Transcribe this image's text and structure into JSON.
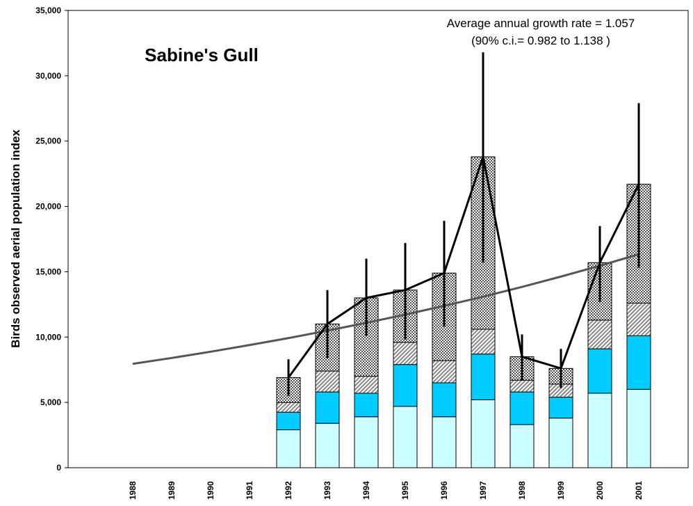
{
  "chart_data": {
    "type": "stacked-bar",
    "title": "Sabine's Gull",
    "y_label": "Birds observed aerial population index",
    "annotations": [
      "Average annual growth rate = 1.057",
      "(90% c.i.= 0.982 to 1.138 )"
    ],
    "categories": [
      "1988",
      "1989",
      "1990",
      "1991",
      "1992",
      "1993",
      "1994",
      "1995",
      "1996",
      "1997",
      "1998",
      "1999",
      "2000",
      "2001"
    ],
    "series": [
      {
        "color": "#ccffff",
        "values": [
          null,
          null,
          null,
          null,
          2900,
          3400,
          3900,
          4700,
          3900,
          5200,
          3300,
          3800,
          5700,
          6000
        ]
      },
      {
        "color": "#00ccff",
        "values": [
          null,
          null,
          null,
          null,
          1350,
          2400,
          1800,
          3200,
          2600,
          3500,
          2500,
          1600,
          3400,
          4100
        ]
      },
      {
        "color": "hatch",
        "values": [
          null,
          null,
          null,
          null,
          750,
          1600,
          1300,
          1700,
          1700,
          1900,
          900,
          1000,
          2200,
          2500
        ]
      },
      {
        "color": "checker",
        "values": [
          null,
          null,
          null,
          null,
          1900,
          3600,
          6000,
          4000,
          6700,
          13200,
          1800,
          1200,
          4400,
          9100
        ]
      }
    ],
    "index": [
      null,
      null,
      null,
      null,
      6900,
      11000,
      13000,
      13600,
      14900,
      23800,
      8500,
      7600,
      15700,
      21700
    ],
    "ci_low": [
      null,
      null,
      null,
      null,
      5500,
      8400,
      10100,
      9800,
      10800,
      15700,
      6700,
      6100,
      12700,
      15300
    ],
    "ci_high": [
      null,
      null,
      null,
      null,
      8300,
      13600,
      16000,
      17200,
      18900,
      31800,
      10200,
      9100,
      18500,
      27900
    ],
    "trend": [
      7950,
      8400,
      8880,
      9390,
      9920,
      10490,
      11090,
      11720,
      12390,
      13090,
      13840,
      14630,
      15460,
      16340
    ],
    "ylim": [
      0,
      35000
    ],
    "yticks": [
      0,
      {
        "value": 5000,
        "label": "5,000"
      },
      {
        "value": 10000,
        "label": "10,000"
      },
      {
        "value": 15000,
        "label": "15,000"
      },
      {
        "value": 20000,
        "label": "20,000"
      },
      {
        "value": 25000,
        "label": "25,000"
      },
      {
        "value": 30000,
        "label": "30,000"
      },
      {
        "value": 35000,
        "label": "35,000"
      }
    ]
  }
}
